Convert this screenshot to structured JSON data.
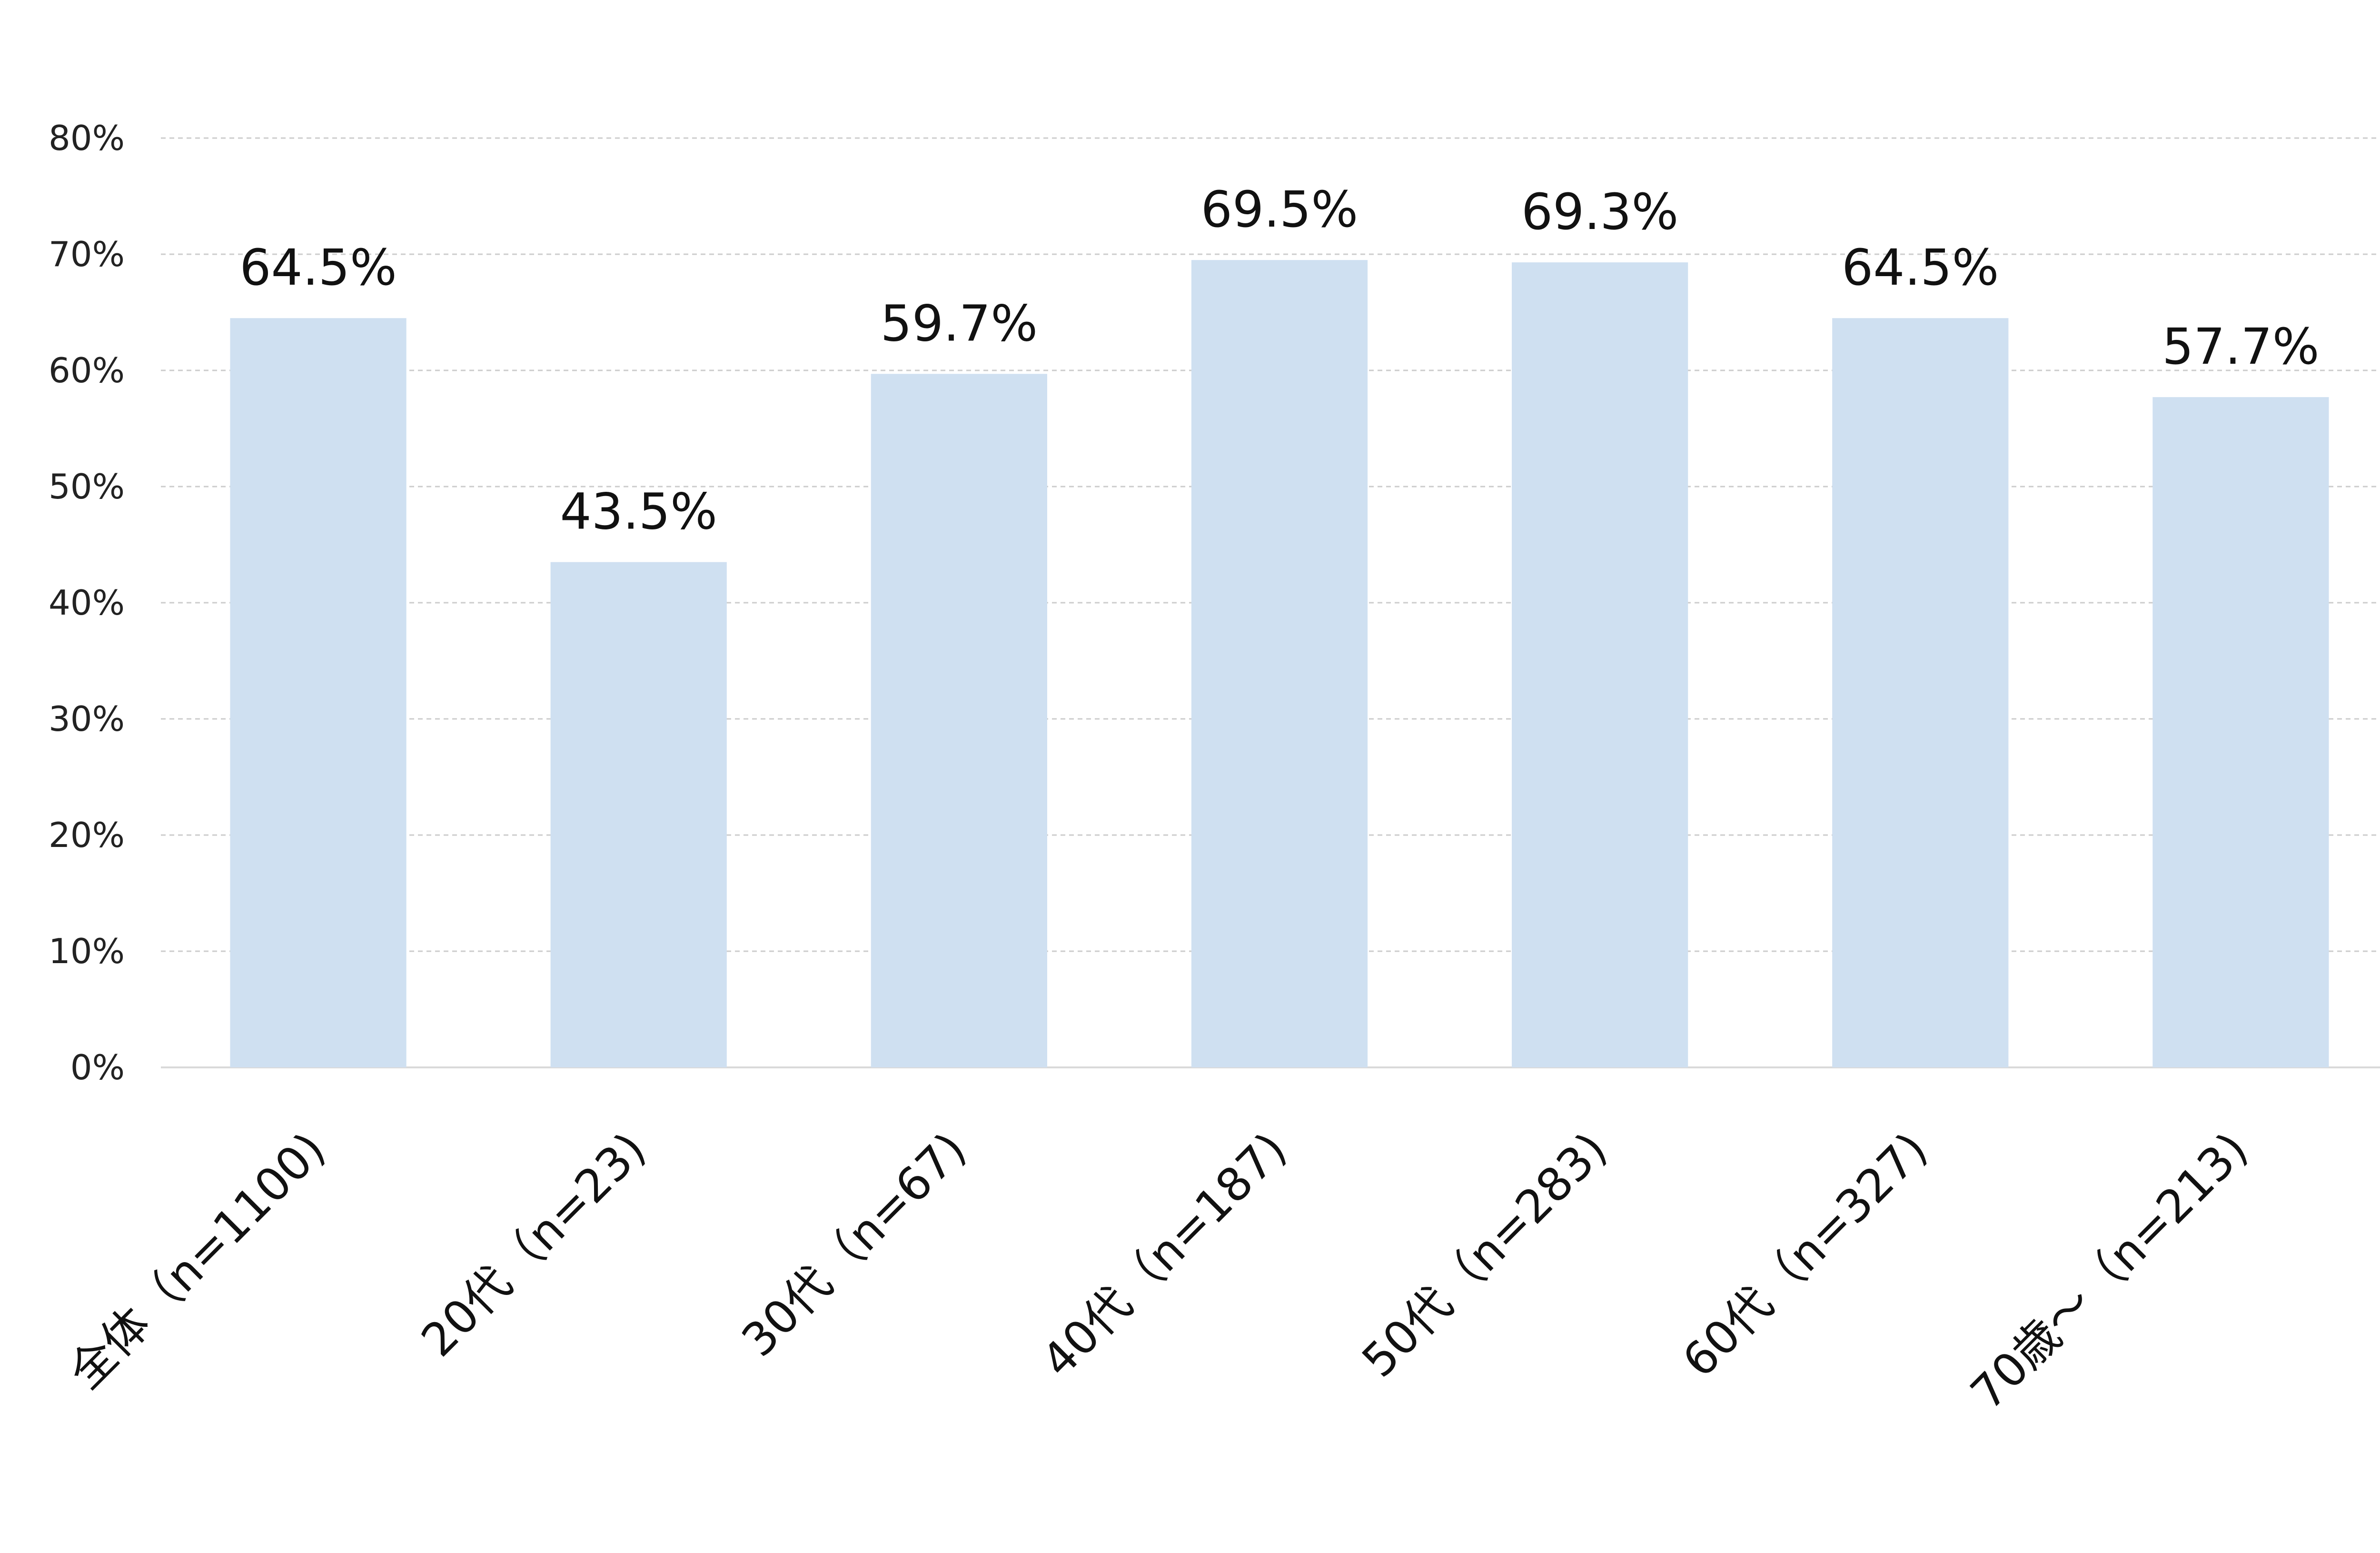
{
  "chart_data": {
    "type": "bar",
    "title": "",
    "xlabel": "",
    "ylabel": "",
    "categories": [
      "全体（n=1100)",
      "20代（n=23)",
      "30代（n=67)",
      "40代（n=187)",
      "50代（n=283)",
      "60代（n=327)",
      "70歳～（n=213)"
    ],
    "values": [
      64.5,
      43.5,
      59.7,
      69.5,
      69.3,
      64.5,
      57.7
    ],
    "value_labels": [
      "64.5%",
      "43.5%",
      "59.7%",
      "69.5%",
      "69.3%",
      "64.5%",
      "57.7%"
    ],
    "ylim": [
      0,
      80
    ],
    "yticks": [
      0,
      10,
      20,
      30,
      40,
      50,
      60,
      70,
      80
    ],
    "ytick_labels": [
      "0%",
      "10%",
      "20%",
      "30%",
      "40%",
      "50%",
      "60%",
      "70%",
      "80%"
    ],
    "grid": true,
    "legend": "none",
    "colors": {
      "bar": "#cfe0f1",
      "grid": "#cccccc",
      "axis": "#d9d9d9"
    }
  }
}
